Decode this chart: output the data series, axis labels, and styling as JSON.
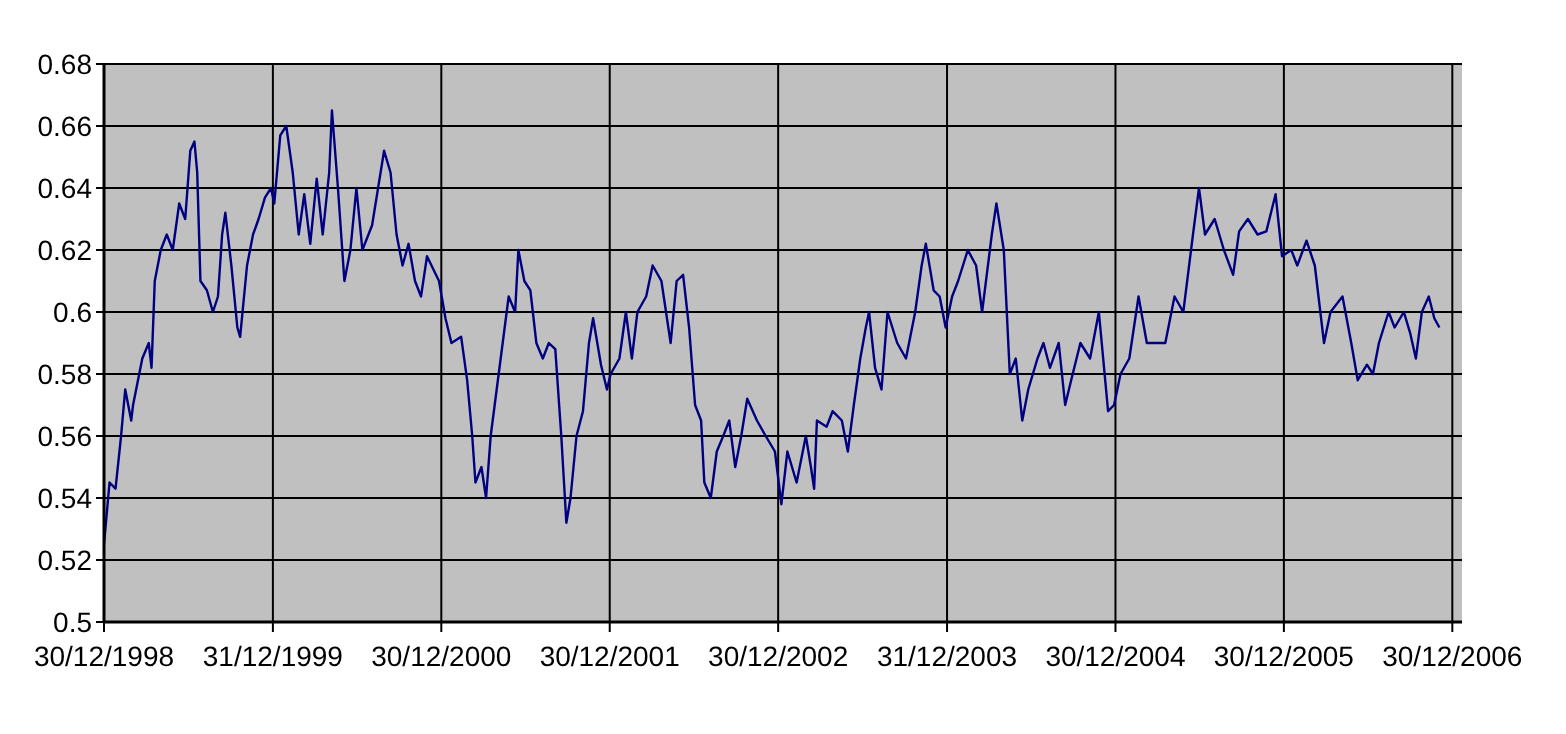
{
  "chart_data": {
    "type": "line",
    "x": [
      "1998-12-30",
      "1999-01-11",
      "1999-01-24",
      "1999-02-05",
      "1999-02-14",
      "1999-02-27",
      "1999-03-03",
      "1999-03-23",
      "1999-04-06",
      "1999-04-12",
      "1999-04-19",
      "1999-05-02",
      "1999-05-15",
      "1999-05-28",
      "1999-06-11",
      "1999-06-24",
      "1999-07-05",
      "1999-07-14",
      "1999-07-20",
      "1999-07-27",
      "1999-08-10",
      "1999-08-23",
      "1999-09-03",
      "1999-09-12",
      "1999-09-19",
      "1999-10-02",
      "1999-10-15",
      "1999-10-21",
      "1999-11-05",
      "1999-11-18",
      "1999-11-30",
      "1999-12-14",
      "1999-12-27",
      "2000-01-03",
      "2000-01-16",
      "2000-01-29",
      "2000-02-12",
      "2000-02-25",
      "2000-03-08",
      "2000-03-21",
      "2000-04-04",
      "2000-04-17",
      "2000-05-01",
      "2000-05-07",
      "2000-05-20",
      "2000-06-03",
      "2000-06-16",
      "2000-06-29",
      "2000-07-12",
      "2000-08-02",
      "2000-08-15",
      "2000-08-28",
      "2000-09-11",
      "2000-09-24",
      "2000-10-07",
      "2000-10-20",
      "2000-11-03",
      "2000-11-16",
      "2000-11-29",
      "2000-12-25",
      "2001-01-08",
      "2001-01-21",
      "2001-02-11",
      "2001-02-24",
      "2001-03-07",
      "2001-03-14",
      "2001-03-27",
      "2001-04-06",
      "2001-04-16",
      "2001-04-29",
      "2001-05-12",
      "2001-05-25",
      "2001-06-08",
      "2001-06-15",
      "2001-06-28",
      "2001-07-11",
      "2001-07-24",
      "2001-08-07",
      "2001-08-20",
      "2001-09-03",
      "2001-09-16",
      "2001-09-27",
      "2001-10-06",
      "2001-10-19",
      "2001-11-02",
      "2001-11-15",
      "2001-11-24",
      "2001-12-11",
      "2001-12-24",
      "2002-01-01",
      "2002-01-20",
      "2002-02-03",
      "2002-02-16",
      "2002-02-28",
      "2002-03-19",
      "2002-04-02",
      "2002-04-21",
      "2002-05-11",
      "2002-05-24",
      "2002-06-07",
      "2002-06-20",
      "2002-07-03",
      "2002-07-16",
      "2002-07-23",
      "2002-08-06",
      "2002-08-19",
      "2002-09-02",
      "2002-09-15",
      "2002-09-28",
      "2002-10-11",
      "2002-10-24",
      "2002-11-14",
      "2002-12-03",
      "2002-12-23",
      "2003-01-06",
      "2003-01-19",
      "2003-02-08",
      "2003-02-28",
      "2003-03-11",
      "2003-03-18",
      "2003-03-24",
      "2003-04-14",
      "2003-04-27",
      "2003-05-17",
      "2003-05-30",
      "2003-06-12",
      "2003-06-26",
      "2003-07-08",
      "2003-07-15",
      "2003-07-28",
      "2003-08-11",
      "2003-08-24",
      "2003-09-14",
      "2003-10-03",
      "2003-10-23",
      "2003-11-06",
      "2003-11-15",
      "2003-12-02",
      "2003-12-15",
      "2003-12-28",
      "2004-01-11",
      "2004-01-24",
      "2004-02-14",
      "2004-03-03",
      "2004-03-16",
      "2004-04-06",
      "2004-04-16",
      "2004-05-02",
      "2004-05-15",
      "2004-05-28",
      "2004-06-11",
      "2004-06-24",
      "2004-07-14",
      "2004-07-27",
      "2004-08-10",
      "2004-08-29",
      "2004-09-12",
      "2004-09-25",
      "2004-10-15",
      "2004-11-05",
      "2004-11-24",
      "2004-12-14",
      "2004-12-27",
      "2005-01-10",
      "2005-01-29",
      "2005-02-18",
      "2005-03-08",
      "2005-03-21",
      "2005-04-17",
      "2005-05-07",
      "2005-05-26",
      "2005-06-16",
      "2005-06-29",
      "2005-07-12",
      "2005-08-02",
      "2005-08-22",
      "2005-09-11",
      "2005-09-24",
      "2005-10-13",
      "2005-11-03",
      "2005-11-22",
      "2005-12-12",
      "2005-12-26",
      "2006-01-15",
      "2006-01-28",
      "2006-02-17",
      "2006-03-07",
      "2006-03-27",
      "2006-04-10",
      "2006-05-06",
      "2006-05-25",
      "2006-06-08",
      "2006-06-28",
      "2006-07-11",
      "2006-07-24",
      "2006-08-14",
      "2006-08-27",
      "2006-09-16",
      "2006-09-30",
      "2006-10-12",
      "2006-10-25",
      "2006-11-09",
      "2006-11-21",
      "2006-12-02"
    ],
    "series": [
      {
        "color": "#000080",
        "values": [
          0.525,
          0.545,
          0.543,
          0.56,
          0.575,
          0.565,
          0.57,
          0.585,
          0.59,
          0.582,
          0.61,
          0.62,
          0.625,
          0.62,
          0.635,
          0.63,
          0.652,
          0.655,
          0.645,
          0.61,
          0.607,
          0.6,
          0.605,
          0.625,
          0.632,
          0.615,
          0.595,
          0.592,
          0.615,
          0.625,
          0.63,
          0.637,
          0.64,
          0.635,
          0.657,
          0.66,
          0.645,
          0.625,
          0.638,
          0.622,
          0.643,
          0.625,
          0.645,
          0.665,
          0.64,
          0.61,
          0.62,
          0.64,
          0.62,
          0.628,
          0.64,
          0.652,
          0.645,
          0.625,
          0.615,
          0.622,
          0.61,
          0.605,
          0.618,
          0.61,
          0.598,
          0.59,
          0.592,
          0.578,
          0.56,
          0.545,
          0.55,
          0.54,
          0.56,
          0.575,
          0.59,
          0.605,
          0.6,
          0.62,
          0.61,
          0.607,
          0.59,
          0.585,
          0.59,
          0.588,
          0.56,
          0.532,
          0.54,
          0.56,
          0.568,
          0.59,
          0.598,
          0.583,
          0.575,
          0.58,
          0.585,
          0.6,
          0.585,
          0.6,
          0.605,
          0.615,
          0.61,
          0.59,
          0.61,
          0.612,
          0.595,
          0.57,
          0.565,
          0.545,
          0.54,
          0.555,
          0.56,
          0.565,
          0.55,
          0.56,
          0.572,
          0.565,
          0.56,
          0.555,
          0.538,
          0.555,
          0.545,
          0.56,
          0.55,
          0.543,
          0.565,
          0.563,
          0.568,
          0.565,
          0.555,
          0.57,
          0.585,
          0.595,
          0.6,
          0.582,
          0.575,
          0.6,
          0.59,
          0.585,
          0.6,
          0.615,
          0.622,
          0.607,
          0.605,
          0.595,
          0.605,
          0.61,
          0.62,
          0.615,
          0.6,
          0.625,
          0.635,
          0.62,
          0.58,
          0.585,
          0.565,
          0.575,
          0.585,
          0.59,
          0.582,
          0.59,
          0.57,
          0.578,
          0.59,
          0.585,
          0.6,
          0.568,
          0.57,
          0.58,
          0.585,
          0.605,
          0.59,
          0.59,
          0.59,
          0.605,
          0.6,
          0.625,
          0.64,
          0.625,
          0.63,
          0.62,
          0.612,
          0.626,
          0.63,
          0.625,
          0.626,
          0.638,
          0.618,
          0.62,
          0.615,
          0.623,
          0.615,
          0.59,
          0.6,
          0.605,
          0.59,
          0.578,
          0.583,
          0.58,
          0.59,
          0.6,
          0.595,
          0.6,
          0.593,
          0.585,
          0.6,
          0.605,
          0.598,
          0.595
        ]
      }
    ],
    "xlim": [
      "1998-12-30",
      "2007-01-20"
    ],
    "xticks": [
      {
        "value": "1998-12-30",
        "label": "30/12/1998"
      },
      {
        "value": "1999-12-31",
        "label": "31/12/1999"
      },
      {
        "value": "2000-12-30",
        "label": "30/12/2000"
      },
      {
        "value": "2001-12-30",
        "label": "30/12/2001"
      },
      {
        "value": "2002-12-30",
        "label": "30/12/2002"
      },
      {
        "value": "2003-12-31",
        "label": "31/12/2003"
      },
      {
        "value": "2004-12-30",
        "label": "30/12/2004"
      },
      {
        "value": "2005-12-30",
        "label": "30/12/2005"
      },
      {
        "value": "2006-12-30",
        "label": "30/12/2006"
      }
    ],
    "ylim": [
      0.5,
      0.68
    ],
    "yticks": [
      0.5,
      0.52,
      0.54,
      0.56,
      0.58,
      0.6,
      0.62,
      0.64,
      0.66,
      0.68
    ],
    "grid": true
  }
}
